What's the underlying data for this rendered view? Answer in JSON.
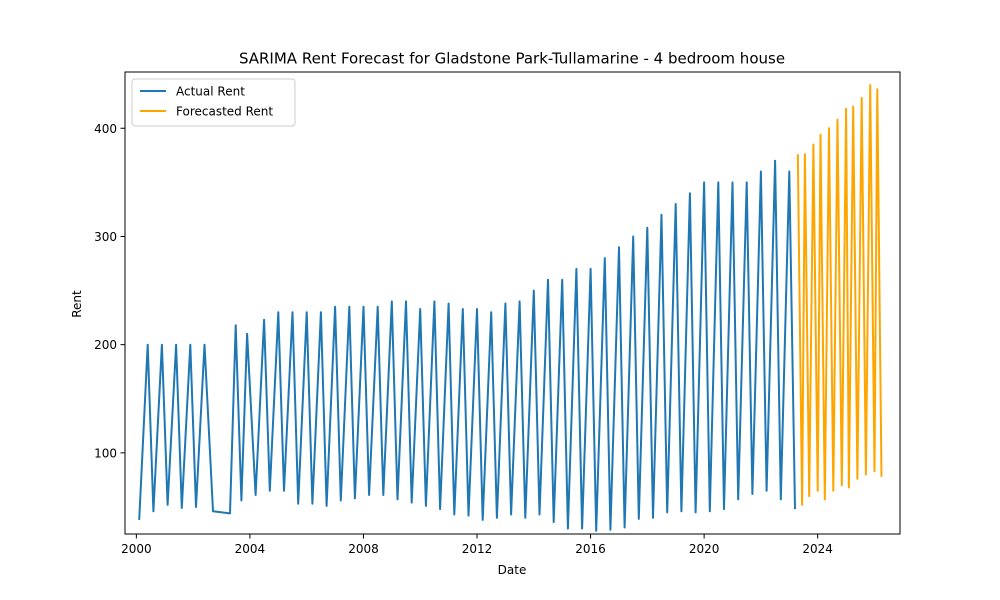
{
  "chart_data": {
    "type": "line",
    "title": "SARIMA Rent Forecast for Gladstone Park-Tullamarine - 4 bedroom house",
    "xlabel": "Date",
    "ylabel": "Rent",
    "xlim": [
      1999.6,
      2026.9
    ],
    "ylim": [
      25,
      452
    ],
    "xticks": [
      2000,
      2004,
      2008,
      2012,
      2016,
      2020,
      2024
    ],
    "xtick_labels": [
      "2000",
      "2004",
      "2008",
      "2012",
      "2016",
      "2020",
      "2024"
    ],
    "yticks": [
      100,
      200,
      300,
      400
    ],
    "ytick_labels": [
      "100",
      "200",
      "300",
      "400"
    ],
    "grid": false,
    "legend": "upper-left",
    "series": [
      {
        "name": "Actual Rent",
        "color": "#1f77b4",
        "x": [
          2000.1,
          2000.4,
          2000.6,
          2000.9,
          2001.1,
          2001.4,
          2001.6,
          2001.9,
          2002.1,
          2002.4,
          2002.7,
          2003.3,
          2003.5,
          2003.7,
          2003.9,
          2004.2,
          2004.5,
          2004.7,
          2005.0,
          2005.2,
          2005.5,
          2005.7,
          2006.0,
          2006.2,
          2006.5,
          2006.7,
          2007.0,
          2007.2,
          2007.5,
          2007.7,
          2008.0,
          2008.2,
          2008.5,
          2008.7,
          2009.0,
          2009.2,
          2009.5,
          2009.7,
          2010.0,
          2010.2,
          2010.5,
          2010.7,
          2011.0,
          2011.2,
          2011.5,
          2011.7,
          2012.0,
          2012.2,
          2012.5,
          2012.7,
          2013.0,
          2013.2,
          2013.5,
          2013.7,
          2014.0,
          2014.2,
          2014.5,
          2014.7,
          2015.0,
          2015.2,
          2015.5,
          2015.7,
          2016.0,
          2016.2,
          2016.5,
          2016.7,
          2017.0,
          2017.2,
          2017.5,
          2017.7,
          2018.0,
          2018.2,
          2018.5,
          2018.7,
          2019.0,
          2019.2,
          2019.5,
          2019.7,
          2020.0,
          2020.2,
          2020.5,
          2020.7,
          2021.0,
          2021.2,
          2021.5,
          2021.7,
          2022.0,
          2022.2,
          2022.5,
          2022.7,
          2023.0,
          2023.2
        ],
        "y": [
          38,
          200,
          46,
          200,
          52,
          200,
          49,
          200,
          50,
          200,
          46,
          44,
          218,
          56,
          210,
          61,
          223,
          65,
          230,
          65,
          230,
          53,
          230,
          53,
          230,
          51,
          235,
          56,
          235,
          58,
          235,
          61,
          235,
          61,
          240,
          57,
          240,
          54,
          233,
          51,
          240,
          48,
          238,
          43,
          233,
          42,
          233,
          38,
          230,
          40,
          238,
          43,
          240,
          40,
          250,
          43,
          260,
          36,
          260,
          30,
          270,
          30,
          270,
          28,
          280,
          29,
          290,
          31,
          300,
          39,
          308,
          40,
          320,
          45,
          330,
          46,
          340,
          45,
          350,
          46,
          350,
          48,
          350,
          57,
          350,
          62,
          360,
          65,
          370,
          57,
          360,
          48
        ]
      },
      {
        "name": "Forecasted Rent",
        "color": "#ffa500",
        "x": [
          2023.3,
          2023.45,
          2023.55,
          2023.7,
          2023.85,
          2024.0,
          2024.1,
          2024.25,
          2024.4,
          2024.55,
          2024.7,
          2024.85,
          2025.0,
          2025.1,
          2025.25,
          2025.4,
          2025.55,
          2025.7,
          2025.85,
          2026.0,
          2026.1,
          2026.25
        ],
        "y": [
          376,
          52,
          376,
          60,
          385,
          65,
          394,
          57,
          400,
          65,
          408,
          70,
          418,
          68,
          420,
          76,
          428,
          80,
          440,
          83,
          436,
          78
        ]
      }
    ]
  }
}
